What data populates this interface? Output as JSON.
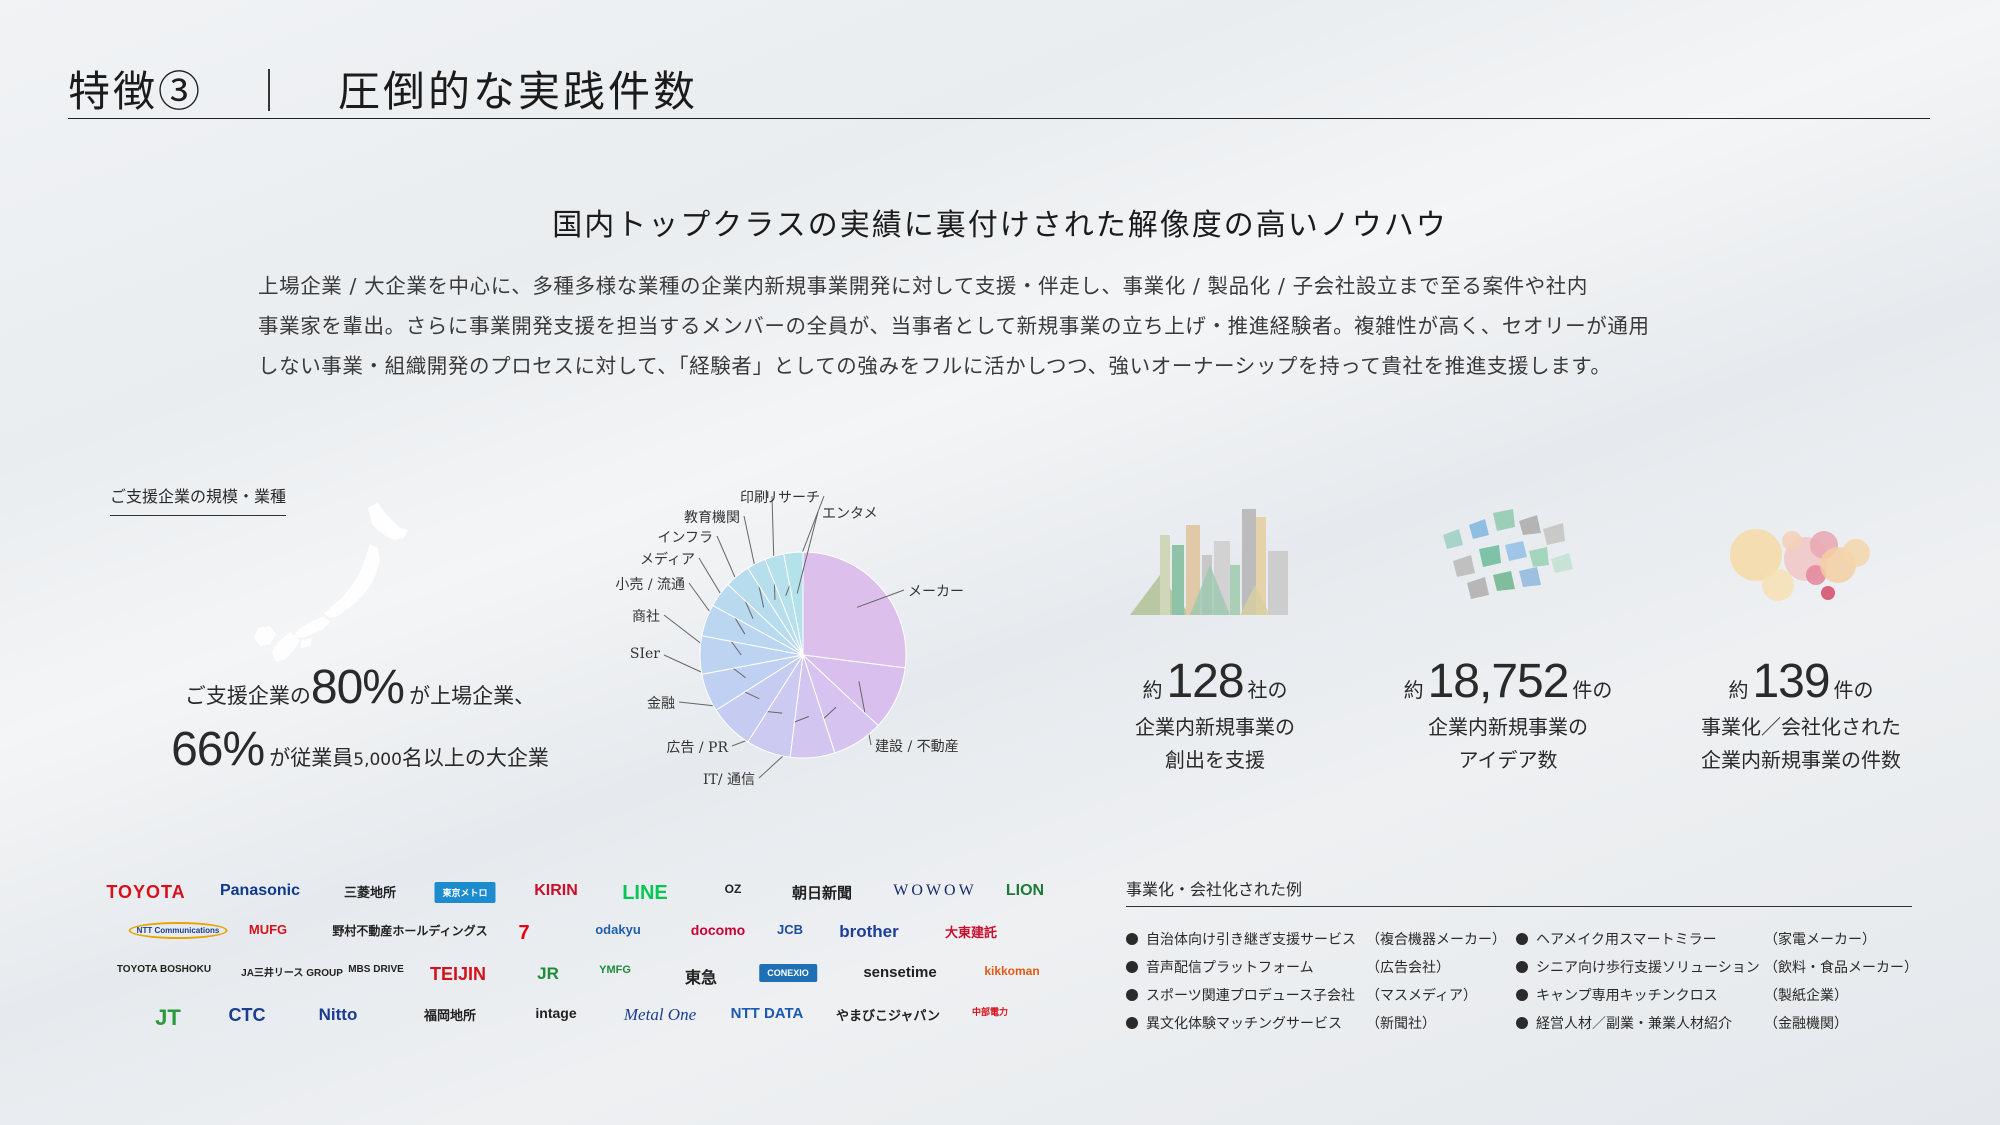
{
  "header": {
    "title": "特徴③　｜　圧倒的な実践件数"
  },
  "headline": "国内トップクラスの実績に裏付けされた解像度の高いノウハウ",
  "lead": [
    "上場企業 / 大企業を中心に、多種多様な業種の企業内新規事業開発に対して支援・伴走し、事業化 / 製品化 / 子会社設立まで至る案件や社内",
    "事業家を輩出。さらに事業開発支援を担当するメンバーの全員が、当事者として新規事業の立ち上げ・推進経験者。複雑性が高く、セオリーが通用",
    "しない事業・組織開発のプロセスに対して、「経験者」としての強みをフルに活かしつつ、強いオーナーシップを持って貴社を推進支援します。"
  ],
  "support_section": {
    "label": "ご支援企業の規模・業種",
    "stat_line1_prefix": "ご支援企業の",
    "stat_line1_value": "80%",
    "stat_line1_suffix": "が上場企業、",
    "stat_line2_value": "66%",
    "stat_line2_suffix_a": "が従業員",
    "stat_line2_suffix_b": "5,000",
    "stat_line2_suffix_c": "名以上の大企業"
  },
  "chart_data": {
    "type": "pie",
    "title": "",
    "categories": [
      "メーカー",
      "建設 / 不動産",
      "IT/ 通信",
      "広告 / PR",
      "金融",
      "SIer",
      "商社",
      "小売 / 流通",
      "メディア",
      "インフラ",
      "教育機関",
      "印刷",
      "リサーチ",
      "エンタメ"
    ],
    "values": [
      27,
      10,
      8,
      7,
      7,
      7,
      6,
      6,
      5,
      4,
      4,
      3,
      3,
      3
    ],
    "colors": [
      "#dcbfeb",
      "#d9bfed",
      "#d6c3ef",
      "#d2c6f0",
      "#cccaf1",
      "#c6ccf1",
      "#c0d0f2",
      "#bcd3f1",
      "#bbd6f0",
      "#b9d9ef",
      "#b7dcee",
      "#b6deed",
      "#b5e0ec",
      "#b4e2eb"
    ]
  },
  "stats": [
    {
      "prefix": "約",
      "value": "128",
      "unit": "社の",
      "desc": [
        "企業内新規事業の",
        "創出を支援"
      ]
    },
    {
      "prefix": "約",
      "value": "18,752",
      "unit": "件の",
      "desc": [
        "企業内新規事業の",
        "アイデア数"
      ]
    },
    {
      "prefix": "約",
      "value": "139",
      "unit": "件の",
      "desc": [
        "事業化／会社化された",
        "企業内新規事業の件数"
      ]
    }
  ],
  "logos": [
    {
      "text": "TOYOTA",
      "color": "#d5121b"
    },
    {
      "text": "Panasonic",
      "color": "#0f3a8c"
    },
    {
      "text": "三菱地所",
      "color": "#222222"
    },
    {
      "text": "東京メトロ",
      "color": "#ffffff"
    },
    {
      "text": "KIRIN",
      "color": "#c8102e"
    },
    {
      "text": "LINE",
      "color": "#06c755"
    },
    {
      "text": "OZ",
      "color": "#222222"
    },
    {
      "text": "朝日新聞",
      "color": "#222222"
    },
    {
      "text": "WOWOW",
      "color": "#1a2a6c"
    },
    {
      "text": "LION",
      "color": "#1f7a3a"
    },
    {
      "text": "NTT Communications",
      "color": "#1a3d8f"
    },
    {
      "text": "MUFG",
      "color": "#d5121b"
    },
    {
      "text": "野村不動産ホールディングス",
      "color": "#222222"
    },
    {
      "text": "7",
      "color": "#e60012"
    },
    {
      "text": "odakyu",
      "color": "#1d5fb0"
    },
    {
      "text": "docomo",
      "color": "#cc0033"
    },
    {
      "text": "JCB",
      "color": "#1a4ea0"
    },
    {
      "text": "brother",
      "color": "#1d3f9a"
    },
    {
      "text": "大東建託",
      "color": "#c8102e"
    },
    {
      "text": "TOYOTA BOSHOKU",
      "color": "#222222"
    },
    {
      "text": "JA三井リース GROUP",
      "color": "#222222"
    },
    {
      "text": "MBS DRIVE",
      "color": "#222222"
    },
    {
      "text": "TEIJIN",
      "color": "#d5121b"
    },
    {
      "text": "JR",
      "color": "#1e8c3a"
    },
    {
      "text": "YMFG",
      "color": "#1e8c3a"
    },
    {
      "text": "東急",
      "color": "#222222"
    },
    {
      "text": "CONEXIO",
      "color": "#ffffff"
    },
    {
      "text": "sensetime",
      "color": "#222222"
    },
    {
      "text": "kikkoman",
      "color": "#e05a12"
    },
    {
      "text": "JT",
      "color": "#2a9a3a"
    },
    {
      "text": "CTC",
      "color": "#1a3d8f"
    },
    {
      "text": "Nitto",
      "color": "#1a3d8f"
    },
    {
      "text": "福岡地所",
      "color": "#222222"
    },
    {
      "text": "intage",
      "color": "#222222"
    },
    {
      "text": "Metal One",
      "color": "#1a3d8f"
    },
    {
      "text": "NTT DATA",
      "color": "#1a5ab0"
    },
    {
      "text": "やまびこジャパン",
      "color": "#222222"
    },
    {
      "text": "中部電力",
      "color": "#d5121b"
    }
  ],
  "examples": {
    "title": "事業化・会社化された例",
    "left": [
      {
        "name": "自治体向け引き継ぎ支援サービス",
        "org": "（複合機器メーカー）"
      },
      {
        "name": "音声配信プラットフォーム",
        "org": "（広告会社）"
      },
      {
        "name": "スポーツ関連プロデュース子会社",
        "org": "（マスメディア）"
      },
      {
        "name": "異文化体験マッチングサービス",
        "org": "（新聞社）"
      }
    ],
    "right": [
      {
        "name": "ヘアメイク用スマートミラー",
        "org": "（家電メーカー）"
      },
      {
        "name": "シニア向け歩行支援ソリューション",
        "org": "（飲料・食品メーカー）"
      },
      {
        "name": "キャンプ専用キッチンクロス",
        "org": "（製紙企業）"
      },
      {
        "name": "経営人材／副業・兼業人材紹介",
        "org": "（金融機関）"
      }
    ]
  }
}
